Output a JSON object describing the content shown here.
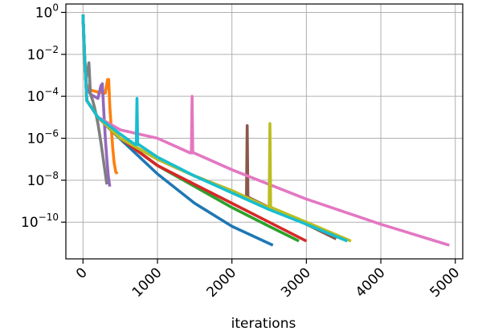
{
  "chart_data": {
    "type": "line",
    "xlabel": "iterations",
    "ylabel": "",
    "xlim": [
      -230,
      5100
    ],
    "ylim_log10": [
      -11.75,
      0.4
    ],
    "y_scale": "log",
    "grid": true,
    "x_ticks": [
      0,
      1000,
      2000,
      3000,
      4000,
      5000
    ],
    "x_tick_labels": [
      "0",
      "1000",
      "2000",
      "3000",
      "4000",
      "5000"
    ],
    "y_ticks_log10": [
      0,
      -2,
      -4,
      -6,
      -8,
      -10
    ],
    "y_tick_labels": [
      {
        "base": "10",
        "exp": "0"
      },
      {
        "base": "10",
        "exp": "−2"
      },
      {
        "base": "10",
        "exp": "−4"
      },
      {
        "base": "10",
        "exp": "−6"
      },
      {
        "base": "10",
        "exp": "−8"
      },
      {
        "base": "10",
        "exp": "−10"
      }
    ],
    "series": [
      {
        "color": "#1f77b4",
        "x": [
          0,
          20,
          50,
          200,
          400,
          700,
          1000,
          1500,
          2000,
          2550
        ],
        "y_log10": [
          -0.1,
          -2.0,
          -4.2,
          -5.0,
          -5.7,
          -6.7,
          -7.7,
          -9.1,
          -10.2,
          -11.1
        ]
      },
      {
        "color": "#ff7f0e",
        "x": [
          0,
          15,
          40,
          100,
          200,
          300,
          330,
          345,
          360,
          380,
          400,
          420,
          440,
          460
        ],
        "y_log10": [
          -0.1,
          -2.0,
          -3.4,
          -3.7,
          -3.8,
          -3.85,
          -3.2,
          -3.2,
          -4.5,
          -5.5,
          -6.5,
          -7.2,
          -7.6,
          -7.7
        ]
      },
      {
        "color": "#2ca02c",
        "x": [
          0,
          20,
          50,
          200,
          500,
          1000,
          1500,
          2000,
          2500,
          2900
        ],
        "y_log10": [
          -0.1,
          -2.0,
          -4.2,
          -5.0,
          -6.0,
          -7.3,
          -8.3,
          -9.3,
          -10.2,
          -10.9
        ]
      },
      {
        "color": "#d62728",
        "x": [
          0,
          20,
          50,
          200,
          500,
          1000,
          1500,
          2000,
          2500,
          3000
        ],
        "y_log10": [
          -0.1,
          -2.0,
          -4.2,
          -5.0,
          -6.0,
          -7.3,
          -8.2,
          -9.1,
          -10.0,
          -10.9
        ]
      },
      {
        "color": "#9467bd",
        "x": [
          0,
          20,
          50,
          100,
          150,
          200,
          240,
          260,
          280,
          300,
          320,
          340,
          360
        ],
        "y_log10": [
          -0.1,
          -2.0,
          -3.6,
          -3.9,
          -4.0,
          -4.1,
          -3.5,
          -3.4,
          -4.8,
          -6.0,
          -7.0,
          -7.8,
          -8.3
        ]
      },
      {
        "color": "#8c564b",
        "x": [
          0,
          20,
          50,
          200,
          500,
          1000,
          1500,
          2000,
          2185,
          2195,
          2205,
          2215,
          2500,
          3000,
          3400
        ],
        "y_log10": [
          -0.1,
          -2.0,
          -4.2,
          -5.0,
          -6.0,
          -7.0,
          -7.8,
          -8.5,
          -8.8,
          -8.8,
          -5.4,
          -8.8,
          -9.3,
          -10.1,
          -10.8
        ]
      },
      {
        "color": "#e377c2",
        "x": [
          0,
          20,
          50,
          200,
          500,
          1000,
          1440,
          1455,
          1465,
          1475,
          1490,
          2000,
          3000,
          4000,
          4920
        ],
        "y_log10": [
          -0.1,
          -2.0,
          -4.2,
          -5.0,
          -5.6,
          -6.0,
          -6.7,
          -6.7,
          -4.0,
          -6.7,
          -6.7,
          -7.5,
          -8.9,
          -10.1,
          -11.1
        ]
      },
      {
        "color": "#7f7f7f",
        "x": [
          0,
          15,
          40,
          60,
          80,
          100,
          130,
          160,
          200,
          240,
          280,
          320
        ],
        "y_log10": [
          -0.1,
          -2.0,
          -3.2,
          -2.8,
          -2.4,
          -3.9,
          -4.2,
          -4.6,
          -5.3,
          -6.2,
          -7.2,
          -8.2
        ]
      },
      {
        "color": "#bcbd22",
        "x": [
          0,
          20,
          50,
          200,
          500,
          1000,
          1500,
          2000,
          2490,
          2500,
          2510,
          2520,
          2530,
          3000,
          3600
        ],
        "y_log10": [
          -0.1,
          -2.0,
          -4.2,
          -5.0,
          -6.0,
          -7.0,
          -7.8,
          -8.5,
          -9.3,
          -9.3,
          -5.3,
          -9.3,
          -9.3,
          -10.0,
          -10.9
        ]
      },
      {
        "color": "#17becf",
        "x": [
          0,
          20,
          50,
          200,
          500,
          700,
          715,
          725,
          735,
          750,
          1000,
          1500,
          2000,
          2500,
          3000,
          3550
        ],
        "y_log10": [
          -0.1,
          -2.0,
          -4.2,
          -5.0,
          -5.8,
          -6.3,
          -6.3,
          -4.1,
          -6.3,
          -6.3,
          -6.9,
          -7.8,
          -8.6,
          -9.4,
          -10.1,
          -10.9
        ]
      }
    ]
  }
}
